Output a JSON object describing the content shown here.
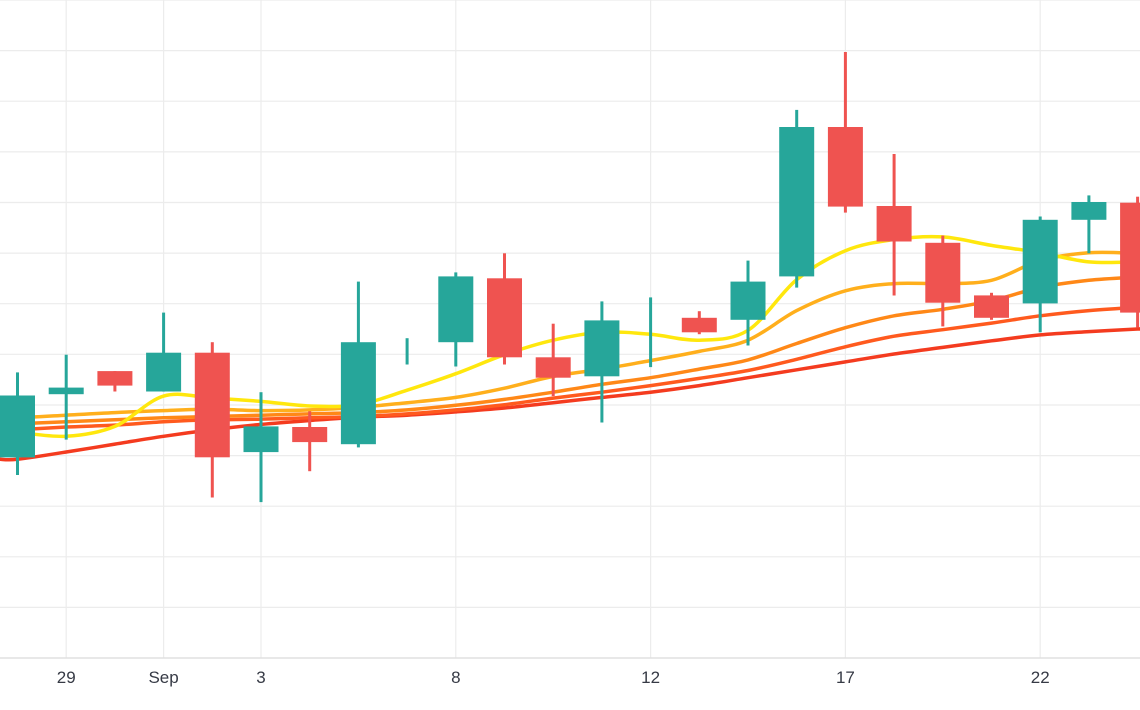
{
  "chart_data": {
    "type": "candlestick",
    "title": "",
    "legend_position": "none",
    "grid": true,
    "x": {
      "dates": [
        "Aug 28",
        "Aug 29",
        "Aug 30",
        "Sep 1",
        "Sep 2",
        "Sep 3",
        "Sep 4",
        "Sep 5",
        "Sep 6",
        "Sep 8",
        "Sep 9",
        "Sep 10",
        "Sep 11",
        "Sep 12",
        "Sep 13",
        "Sep 15",
        "Sep 16",
        "Sep 17",
        "Sep 18",
        "Sep 19",
        "Sep 20",
        "Sep 22",
        "Sep 23",
        "Sep 24"
      ],
      "tick_indices": [
        1,
        3,
        5,
        9,
        13,
        17,
        21
      ],
      "tick_labels": [
        "29",
        "Sep",
        "3",
        "8",
        "12",
        "17",
        "22"
      ]
    },
    "y": {
      "unit": "percent-of-plot-height (price axis labels not visible in screenshot)",
      "range": [
        0,
        100
      ],
      "visible_tick_labels": []
    },
    "candles": [
      {
        "date": "Aug 28",
        "open": 30.5,
        "high": 43.4,
        "low": 27.8,
        "close": 39.9
      },
      {
        "date": "Aug 29",
        "open": 40.1,
        "high": 46.1,
        "low": 33.2,
        "close": 41.1
      },
      {
        "date": "Aug 30",
        "open": 43.6,
        "high": 43.6,
        "low": 40.5,
        "close": 41.4
      },
      {
        "date": "Sep 1",
        "open": 40.5,
        "high": 52.5,
        "low": 40.5,
        "close": 46.4
      },
      {
        "date": "Sep 2",
        "open": 46.4,
        "high": 48.0,
        "low": 24.4,
        "close": 30.5
      },
      {
        "date": "Sep 3",
        "open": 31.3,
        "high": 40.4,
        "low": 23.7,
        "close": 35.2
      },
      {
        "date": "Sep 4",
        "open": 35.1,
        "high": 37.5,
        "low": 28.4,
        "close": 32.8
      },
      {
        "date": "Sep 5",
        "open": 32.5,
        "high": 57.2,
        "low": 32.0,
        "close": 48.0
      },
      {
        "date": "Sep 6",
        "open": 46.4,
        "high": 48.6,
        "low": 44.6,
        "close": 46.7
      },
      {
        "date": "Sep 8",
        "open": 48.0,
        "high": 58.6,
        "low": 44.3,
        "close": 58.0
      },
      {
        "date": "Sep 9",
        "open": 57.7,
        "high": 61.5,
        "low": 44.6,
        "close": 45.7
      },
      {
        "date": "Sep 10",
        "open": 45.7,
        "high": 50.8,
        "low": 39.8,
        "close": 42.6
      },
      {
        "date": "Sep 11",
        "open": 42.8,
        "high": 54.2,
        "low": 35.8,
        "close": 51.3
      },
      {
        "date": "Sep 12",
        "open": 49.3,
        "high": 54.8,
        "low": 44.2,
        "close": 49.6
      },
      {
        "date": "Sep 13",
        "open": 51.7,
        "high": 52.7,
        "low": 49.2,
        "close": 49.5
      },
      {
        "date": "Sep 15",
        "open": 51.4,
        "high": 60.4,
        "low": 47.5,
        "close": 57.2
      },
      {
        "date": "Sep 16",
        "open": 58.0,
        "high": 83.3,
        "low": 56.3,
        "close": 80.7
      },
      {
        "date": "Sep 17",
        "open": 80.7,
        "high": 92.1,
        "low": 67.7,
        "close": 68.6
      },
      {
        "date": "Sep 18",
        "open": 68.7,
        "high": 76.6,
        "low": 55.1,
        "close": 63.3
      },
      {
        "date": "Sep 19",
        "open": 63.1,
        "high": 64.2,
        "low": 50.4,
        "close": 54.0
      },
      {
        "date": "Sep 20",
        "open": 55.1,
        "high": 55.5,
        "low": 51.4,
        "close": 51.7
      },
      {
        "date": "Sep 22",
        "open": 53.9,
        "high": 67.1,
        "low": 49.5,
        "close": 66.6
      },
      {
        "date": "Sep 23",
        "open": 66.6,
        "high": 70.3,
        "low": 61.5,
        "close": 69.3
      },
      {
        "date": "Sep 24",
        "open": 69.2,
        "high": 70.1,
        "low": 50.2,
        "close": 52.5
      }
    ],
    "ma_ribbon": [
      {
        "name": "ma-1-fastest",
        "color": "#ffe70d",
        "values": [
          34.3,
          33.7,
          35.2,
          39.8,
          39.5,
          39.0,
          38.3,
          38.5,
          40.7,
          43.2,
          46.1,
          48.3,
          49.5,
          49.2,
          48.3,
          49.8,
          57.5,
          61.9,
          63.6,
          64.0,
          62.7,
          61.6,
          60.2,
          60.2
        ]
      },
      {
        "name": "ma-2",
        "color": "#ffaf1c",
        "values": [
          36.5,
          36.9,
          37.3,
          37.6,
          37.8,
          37.6,
          37.7,
          38.1,
          38.8,
          39.6,
          41.0,
          42.8,
          43.9,
          45.2,
          46.6,
          48.3,
          52.8,
          55.8,
          56.9,
          56.9,
          57.4,
          60.4,
          61.6,
          61.5
        ]
      },
      {
        "name": "ma-3",
        "color": "#ff8817",
        "values": [
          35.6,
          35.9,
          36.2,
          36.5,
          36.7,
          36.9,
          37.1,
          37.3,
          37.7,
          38.4,
          39.3,
          40.4,
          41.6,
          42.6,
          43.9,
          45.3,
          47.8,
          50.2,
          52.0,
          53.0,
          54.3,
          56.3,
          57.4,
          57.9
        ]
      },
      {
        "name": "ma-4",
        "color": "#ff5a1e",
        "values": [
          34.7,
          35.1,
          35.4,
          35.9,
          36.2,
          36.3,
          36.5,
          36.7,
          37.1,
          37.7,
          38.5,
          39.5,
          40.4,
          41.4,
          42.5,
          43.7,
          45.4,
          47.3,
          48.9,
          49.9,
          50.9,
          52.0,
          52.8,
          53.3
        ]
      },
      {
        "name": "ma-5-slowest",
        "color": "#f43b1f",
        "values": [
          30.2,
          31.3,
          32.5,
          33.7,
          34.7,
          35.5,
          36.1,
          36.6,
          36.9,
          37.4,
          38.0,
          38.8,
          39.6,
          40.4,
          41.4,
          42.6,
          43.8,
          45.0,
          46.2,
          47.2,
          48.2,
          49.1,
          49.6,
          50.0
        ]
      }
    ],
    "colors": {
      "up_candle": "#26a69a",
      "down_candle": "#ef5350",
      "grid_line": "#ececec",
      "axis_border": "#e0e0e0",
      "axis_label": "#363a45",
      "background": "#ffffff"
    }
  }
}
